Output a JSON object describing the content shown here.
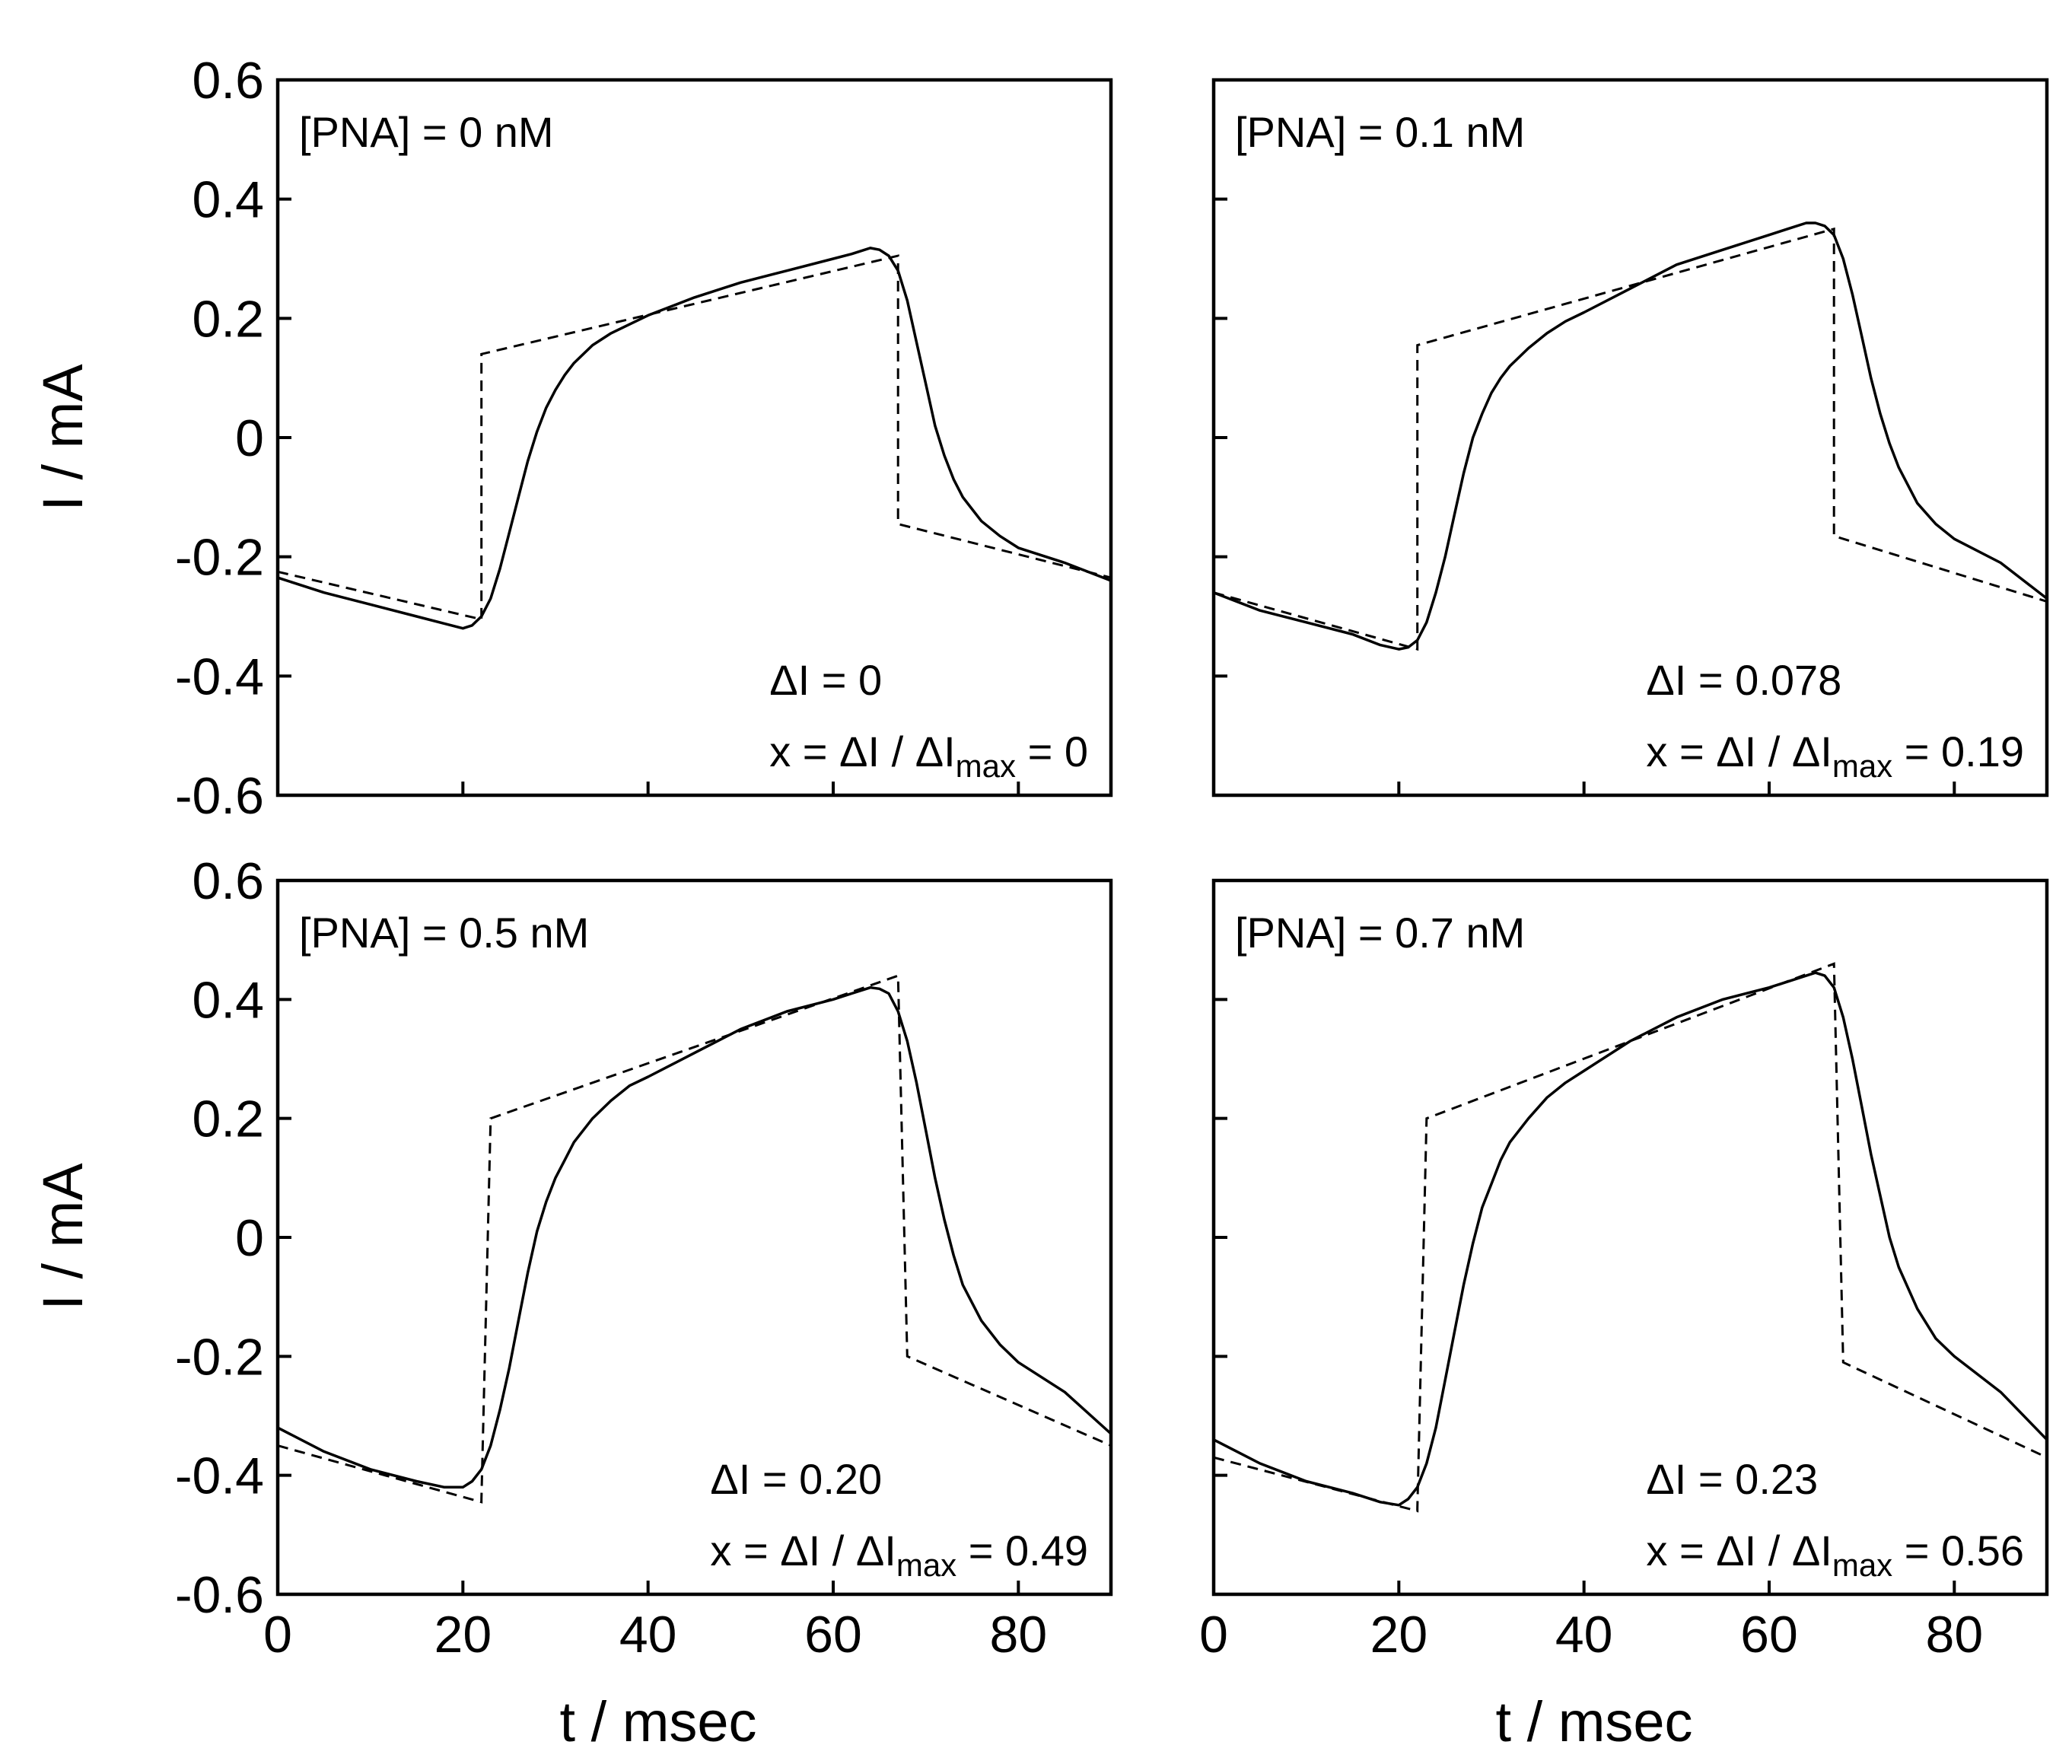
{
  "figure": {
    "ylabel": "I / mA",
    "xlabel": "t / msec",
    "delta_symbol": "Δ",
    "ratio_prefix": "x = ΔI / ΔI",
    "ratio_sub": "max",
    "ratio_eq": " = "
  },
  "chart_data": [
    {
      "type": "line",
      "label": "[PNA] = 0 nM",
      "delta_i": "ΔI = 0",
      "ratio": "0",
      "xlim": [
        0,
        90
      ],
      "ylim": [
        -0.6,
        0.6
      ],
      "xticks": [
        0,
        20,
        40,
        60,
        80
      ],
      "yticks": [
        -0.6,
        -0.4,
        -0.2,
        0,
        0.2,
        0.4,
        0.6
      ],
      "ytick_labels": [
        "-0.6",
        "-0.4",
        "-0.2",
        "0",
        "0.2",
        "0.4",
        "0.6"
      ],
      "series": [
        {
          "name": "measured",
          "style": "solid",
          "x": [
            0,
            5,
            10,
            15,
            18,
            20,
            21,
            22,
            23,
            24,
            25,
            26,
            27,
            28,
            29,
            30,
            31,
            32,
            34,
            36,
            38,
            40,
            45,
            50,
            55,
            60,
            62,
            64,
            65,
            66,
            67,
            68,
            69,
            70,
            71,
            72,
            73,
            74,
            76,
            78,
            80,
            85,
            90
          ],
          "y": [
            -0.235,
            -0.26,
            -0.28,
            -0.3,
            -0.312,
            -0.32,
            -0.315,
            -0.3,
            -0.27,
            -0.22,
            -0.16,
            -0.1,
            -0.04,
            0.01,
            0.05,
            0.08,
            0.105,
            0.125,
            0.155,
            0.175,
            0.19,
            0.205,
            0.235,
            0.26,
            0.28,
            0.3,
            0.308,
            0.318,
            0.315,
            0.305,
            0.28,
            0.23,
            0.16,
            0.09,
            0.02,
            -0.03,
            -0.07,
            -0.1,
            -0.14,
            -0.165,
            -0.185,
            -0.21,
            -0.24
          ]
        },
        {
          "name": "fit",
          "style": "dashed",
          "x": [
            0,
            22,
            22,
            67,
            67,
            90
          ],
          "y": [
            -0.225,
            -0.305,
            0.14,
            0.305,
            -0.145,
            -0.235
          ]
        }
      ]
    },
    {
      "type": "line",
      "label": "[PNA] = 0.1 nM",
      "delta_i": "ΔI = 0.078",
      "ratio": "0.19",
      "xlim": [
        0,
        90
      ],
      "ylim": [
        -0.6,
        0.6
      ],
      "xticks": [
        0,
        20,
        40,
        60,
        80
      ],
      "yticks": [
        -0.6,
        -0.4,
        -0.2,
        0,
        0.2,
        0.4,
        0.6
      ],
      "ytick_labels": [],
      "series": [
        {
          "name": "measured",
          "style": "solid",
          "x": [
            0,
            5,
            10,
            15,
            18,
            20,
            21,
            22,
            23,
            24,
            25,
            26,
            27,
            28,
            29,
            30,
            31,
            32,
            34,
            36,
            38,
            40,
            45,
            50,
            55,
            60,
            62,
            64,
            65,
            66,
            67,
            68,
            69,
            70,
            71,
            72,
            73,
            74,
            76,
            78,
            80,
            85,
            90
          ],
          "y": [
            -0.26,
            -0.29,
            -0.31,
            -0.33,
            -0.348,
            -0.355,
            -0.352,
            -0.34,
            -0.31,
            -0.26,
            -0.2,
            -0.13,
            -0.06,
            0,
            0.04,
            0.075,
            0.1,
            0.12,
            0.15,
            0.175,
            0.195,
            0.21,
            0.25,
            0.29,
            0.315,
            0.34,
            0.35,
            0.36,
            0.36,
            0.355,
            0.34,
            0.3,
            0.24,
            0.17,
            0.1,
            0.04,
            -0.01,
            -0.05,
            -0.11,
            -0.145,
            -0.17,
            -0.21,
            -0.27
          ]
        },
        {
          "name": "fit",
          "style": "dashed",
          "x": [
            0,
            22,
            22,
            67,
            67,
            90
          ],
          "y": [
            -0.26,
            -0.355,
            0.155,
            0.35,
            -0.165,
            -0.275
          ]
        }
      ]
    },
    {
      "type": "line",
      "label": "[PNA] = 0.5 nM",
      "delta_i": "ΔI = 0.20",
      "ratio": "0.49",
      "xlim": [
        0,
        90
      ],
      "ylim": [
        -0.6,
        0.6
      ],
      "xticks": [
        0,
        20,
        40,
        60,
        80
      ],
      "yticks": [
        -0.6,
        -0.4,
        -0.2,
        0,
        0.2,
        0.4,
        0.6
      ],
      "ytick_labels": [
        "-0.6",
        "-0.4",
        "-0.2",
        "0",
        "0.2",
        "0.4",
        "0.6"
      ],
      "xtick_labels": [
        "0",
        "20",
        "40",
        "60",
        "80"
      ],
      "series": [
        {
          "name": "measured",
          "style": "solid",
          "x": [
            0,
            5,
            10,
            15,
            18,
            20,
            21,
            22,
            23,
            24,
            25,
            26,
            27,
            28,
            29,
            30,
            31,
            32,
            34,
            36,
            38,
            40,
            45,
            50,
            55,
            60,
            62,
            64,
            65,
            66,
            67,
            68,
            69,
            70,
            71,
            72,
            73,
            74,
            76,
            78,
            80,
            85,
            90
          ],
          "y": [
            -0.32,
            -0.36,
            -0.39,
            -0.41,
            -0.42,
            -0.42,
            -0.41,
            -0.39,
            -0.35,
            -0.29,
            -0.22,
            -0.14,
            -0.06,
            0.01,
            0.06,
            0.1,
            0.13,
            0.16,
            0.2,
            0.23,
            0.255,
            0.27,
            0.31,
            0.35,
            0.38,
            0.4,
            0.41,
            0.42,
            0.418,
            0.41,
            0.38,
            0.33,
            0.26,
            0.18,
            0.1,
            0.03,
            -0.03,
            -0.08,
            -0.14,
            -0.18,
            -0.21,
            -0.26,
            -0.33
          ]
        },
        {
          "name": "fit",
          "style": "dashed",
          "x": [
            0,
            22,
            22,
            23,
            67,
            68,
            90
          ],
          "y": [
            -0.35,
            -0.445,
            -0.44,
            0.2,
            0.44,
            -0.2,
            -0.35
          ]
        }
      ]
    },
    {
      "type": "line",
      "label": "[PNA] = 0.7 nM",
      "delta_i": "ΔI = 0.23",
      "ratio": "0.56",
      "xlim": [
        0,
        90
      ],
      "ylim": [
        -0.6,
        0.6
      ],
      "xticks": [
        0,
        20,
        40,
        60,
        80
      ],
      "yticks": [
        -0.6,
        -0.4,
        -0.2,
        0,
        0.2,
        0.4,
        0.6
      ],
      "ytick_labels": [],
      "xtick_labels": [
        "0",
        "20",
        "40",
        "60",
        "80"
      ],
      "series": [
        {
          "name": "measured",
          "style": "solid",
          "x": [
            0,
            5,
            10,
            15,
            18,
            20,
            21,
            22,
            23,
            24,
            25,
            26,
            27,
            28,
            29,
            30,
            31,
            32,
            34,
            36,
            38,
            40,
            45,
            50,
            55,
            60,
            62,
            64,
            65,
            66,
            67,
            68,
            69,
            70,
            71,
            72,
            73,
            74,
            76,
            78,
            80,
            85,
            90
          ],
          "y": [
            -0.34,
            -0.38,
            -0.41,
            -0.43,
            -0.445,
            -0.45,
            -0.44,
            -0.42,
            -0.38,
            -0.32,
            -0.24,
            -0.16,
            -0.08,
            -0.01,
            0.05,
            0.09,
            0.13,
            0.16,
            0.2,
            0.235,
            0.26,
            0.28,
            0.33,
            0.37,
            0.4,
            0.42,
            0.43,
            0.44,
            0.445,
            0.44,
            0.42,
            0.37,
            0.3,
            0.22,
            0.14,
            0.07,
            0,
            -0.05,
            -0.12,
            -0.17,
            -0.2,
            -0.26,
            -0.34
          ]
        },
        {
          "name": "fit",
          "style": "dashed",
          "x": [
            0,
            22,
            22,
            23,
            67,
            68,
            90
          ],
          "y": [
            -0.37,
            -0.46,
            -0.455,
            0.2,
            0.46,
            -0.21,
            -0.37
          ]
        }
      ]
    }
  ]
}
